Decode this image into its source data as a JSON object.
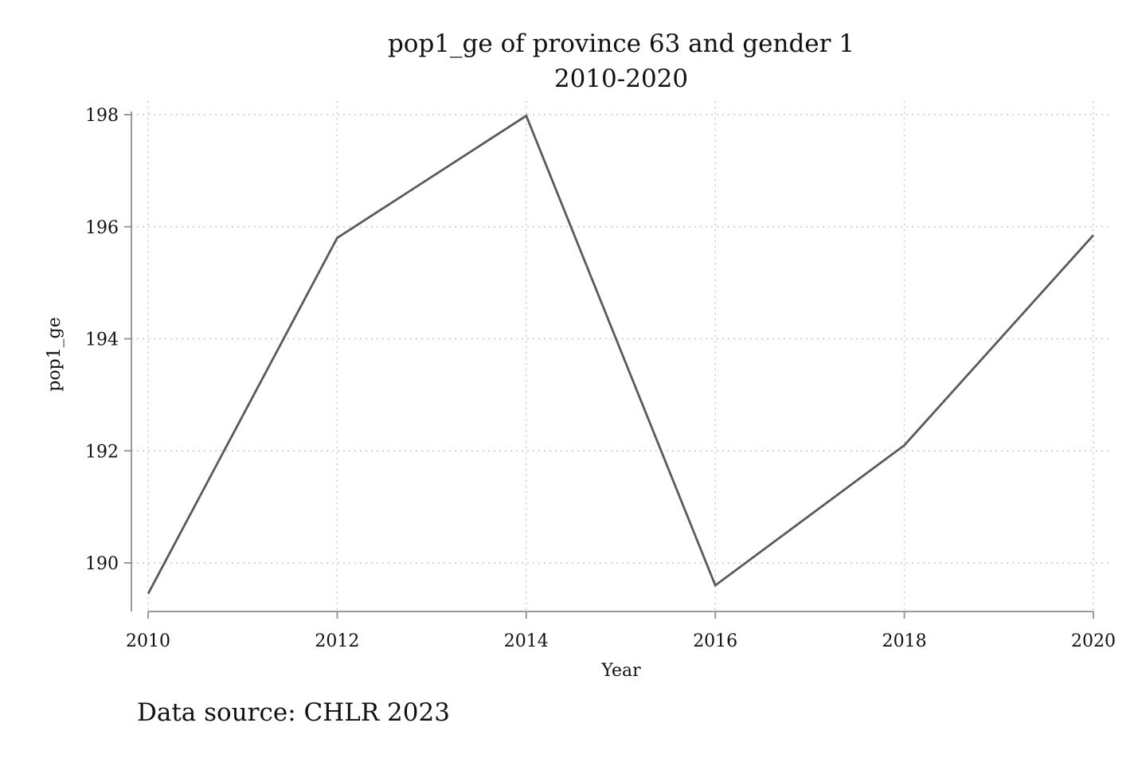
{
  "chart_data": {
    "type": "line",
    "title": "pop1_ge of province 63 and gender 1",
    "subtitle": "2010-2020",
    "xlabel": "Year",
    "ylabel": "pop1_ge",
    "x": [
      2010,
      2012,
      2014,
      2016,
      2018,
      2020
    ],
    "series": [
      {
        "values": [
          189.45,
          195.8,
          197.98,
          189.6,
          192.1,
          195.85
        ]
      }
    ],
    "xticks": [
      "2010",
      "2012",
      "2014",
      "2016",
      "2018",
      "2020"
    ],
    "yticks": [
      "190",
      "192",
      "194",
      "196",
      "198"
    ],
    "xlim": [
      2010,
      2020
    ],
    "ylim": [
      189.1,
      198.3
    ],
    "grid": true,
    "legend": "none",
    "line_color": "#5a5a5a",
    "note": "Data source: CHLR 2023"
  }
}
